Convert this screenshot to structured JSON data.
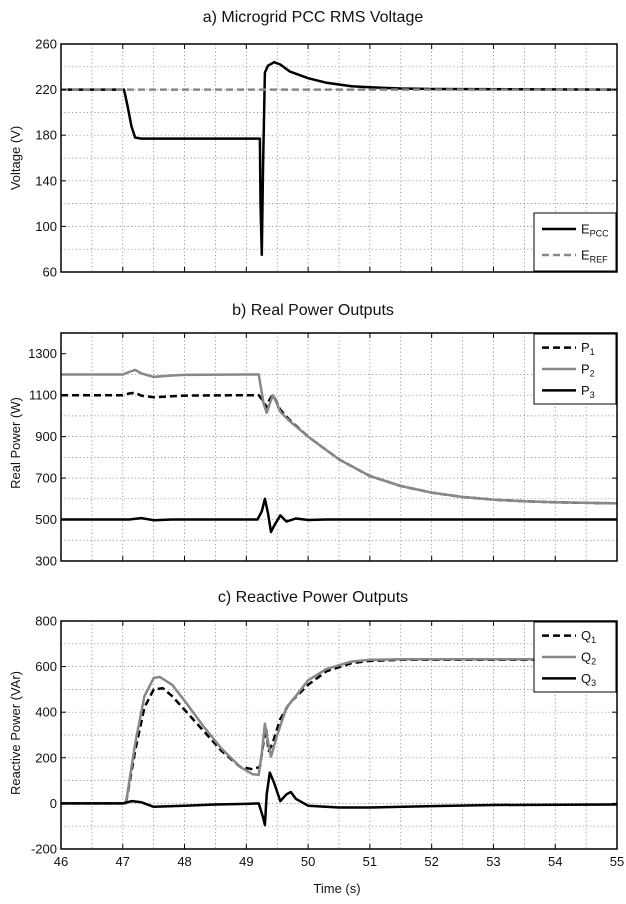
{
  "chart_data": [
    {
      "type": "line",
      "title": "a) Microgrid PCC RMS Voltage",
      "xlabel": "",
      "ylabel": "Voltage (V)",
      "xlim": [
        46,
        55
      ],
      "ylim": [
        60,
        260
      ],
      "xticks": [
        46,
        47,
        48,
        49,
        50,
        51,
        52,
        53,
        54,
        55
      ],
      "yticks": [
        60,
        100,
        140,
        180,
        220,
        260
      ],
      "show_xticklabels": false,
      "grid": true,
      "legend_position": "bottom-right",
      "series": [
        {
          "name": "E",
          "sub": "PCC",
          "color": "#000000",
          "dash": "solid",
          "points": [
            [
              46,
              220
            ],
            [
              47.02,
              220
            ],
            [
              47.08,
              205
            ],
            [
              47.14,
              188
            ],
            [
              47.2,
              178
            ],
            [
              47.3,
              177
            ],
            [
              48,
              177
            ],
            [
              49,
              177
            ],
            [
              49.22,
              177
            ],
            [
              49.23,
              120
            ],
            [
              49.25,
              75
            ],
            [
              49.27,
              150
            ],
            [
              49.3,
              235
            ],
            [
              49.35,
              241
            ],
            [
              49.45,
              244
            ],
            [
              49.55,
              242
            ],
            [
              49.7,
              236
            ],
            [
              50,
              230
            ],
            [
              50.3,
              226
            ],
            [
              50.7,
              223
            ],
            [
              51,
              222
            ],
            [
              51.5,
              221
            ],
            [
              52,
              220.5
            ],
            [
              55,
              220
            ]
          ]
        },
        {
          "name": "E",
          "sub": "REF",
          "color": "#888888",
          "dash": "dashed",
          "points": [
            [
              46,
              220
            ],
            [
              55,
              220
            ]
          ]
        }
      ]
    },
    {
      "type": "line",
      "title": "b) Real Power Outputs",
      "xlabel": "",
      "ylabel": "Real Power (W)",
      "xlim": [
        46,
        55
      ],
      "ylim": [
        300,
        1400
      ],
      "xticks": [
        46,
        47,
        48,
        49,
        50,
        51,
        52,
        53,
        54,
        55
      ],
      "yticks": [
        300,
        500,
        700,
        900,
        1100,
        1300
      ],
      "show_xticklabels": false,
      "grid": true,
      "legend_position": "top-right",
      "series": [
        {
          "name": "P",
          "sub": "1",
          "color": "#000000",
          "dash": "dashed",
          "points": [
            [
              46,
              1100
            ],
            [
              47,
              1100
            ],
            [
              47.1,
              1108
            ],
            [
              47.2,
              1112
            ],
            [
              47.3,
              1098
            ],
            [
              47.5,
              1090
            ],
            [
              47.8,
              1095
            ],
            [
              48,
              1098
            ],
            [
              49,
              1100
            ],
            [
              49.2,
              1100
            ],
            [
              49.28,
              1070
            ],
            [
              49.33,
              1040
            ],
            [
              49.37,
              1075
            ],
            [
              49.42,
              1100
            ],
            [
              49.46,
              1085
            ],
            [
              49.55,
              1030
            ],
            [
              49.7,
              980
            ],
            [
              50,
              900
            ],
            [
              50.5,
              790
            ],
            [
              51,
              710
            ],
            [
              51.5,
              662
            ],
            [
              52,
              630
            ],
            [
              52.5,
              609
            ],
            [
              53,
              596
            ],
            [
              53.5,
              588
            ],
            [
              54,
              583
            ],
            [
              55,
              578
            ]
          ]
        },
        {
          "name": "P",
          "sub": "2",
          "color": "#888888",
          "dash": "solid",
          "points": [
            [
              46,
              1200
            ],
            [
              47,
              1200
            ],
            [
              47.1,
              1212
            ],
            [
              47.2,
              1222
            ],
            [
              47.3,
              1205
            ],
            [
              47.5,
              1188
            ],
            [
              47.8,
              1195
            ],
            [
              48,
              1198
            ],
            [
              49,
              1200
            ],
            [
              49.2,
              1200
            ],
            [
              49.28,
              1060
            ],
            [
              49.33,
              1015
            ],
            [
              49.38,
              1060
            ],
            [
              49.43,
              1100
            ],
            [
              49.48,
              1070
            ],
            [
              49.55,
              1020
            ],
            [
              49.7,
              975
            ],
            [
              50,
              900
            ],
            [
              50.5,
              790
            ],
            [
              51,
              710
            ],
            [
              51.5,
              662
            ],
            [
              52,
              630
            ],
            [
              52.5,
              609
            ],
            [
              53,
              596
            ],
            [
              53.5,
              588
            ],
            [
              54,
              583
            ],
            [
              55,
              578
            ]
          ]
        },
        {
          "name": "P",
          "sub": "3",
          "color": "#000000",
          "dash": "solid",
          "points": [
            [
              46,
              500
            ],
            [
              47.1,
              500
            ],
            [
              47.3,
              507
            ],
            [
              47.5,
              497
            ],
            [
              47.8,
              500
            ],
            [
              49.18,
              500
            ],
            [
              49.25,
              540
            ],
            [
              49.3,
              600
            ],
            [
              49.35,
              530
            ],
            [
              49.4,
              440
            ],
            [
              49.45,
              470
            ],
            [
              49.55,
              520
            ],
            [
              49.65,
              490
            ],
            [
              49.8,
              505
            ],
            [
              50,
              498
            ],
            [
              50.3,
              500
            ],
            [
              55,
              500
            ]
          ]
        }
      ]
    },
    {
      "type": "line",
      "title": "c) Reactive Power Outputs",
      "xlabel": "Time (s)",
      "ylabel": "Reactive Power (VAr)",
      "xlim": [
        46,
        55
      ],
      "ylim": [
        -200,
        800
      ],
      "xticks": [
        46,
        47,
        48,
        49,
        50,
        51,
        52,
        53,
        54,
        55
      ],
      "yticks": [
        -200,
        0,
        200,
        400,
        600,
        800
      ],
      "show_xticklabels": true,
      "grid": true,
      "legend_position": "top-right",
      "series": [
        {
          "name": "Q",
          "sub": "1",
          "color": "#000000",
          "dash": "dashed",
          "points": [
            [
              46,
              0
            ],
            [
              47.05,
              0
            ],
            [
              47.2,
              230
            ],
            [
              47.35,
              420
            ],
            [
              47.5,
              500
            ],
            [
              47.65,
              505
            ],
            [
              47.8,
              470
            ],
            [
              48,
              410
            ],
            [
              48.3,
              320
            ],
            [
              48.6,
              230
            ],
            [
              48.9,
              160
            ],
            [
              49.1,
              150
            ],
            [
              49.22,
              160
            ],
            [
              49.28,
              270
            ],
            [
              49.32,
              330
            ],
            [
              49.36,
              230
            ],
            [
              49.42,
              260
            ],
            [
              49.55,
              370
            ],
            [
              49.7,
              440
            ],
            [
              50,
              520
            ],
            [
              50.3,
              580
            ],
            [
              50.7,
              615
            ],
            [
              51,
              625
            ],
            [
              51.5,
              630
            ],
            [
              55,
              630
            ]
          ]
        },
        {
          "name": "Q",
          "sub": "2",
          "color": "#888888",
          "dash": "solid",
          "points": [
            [
              46,
              0
            ],
            [
              47.05,
              0
            ],
            [
              47.2,
              260
            ],
            [
              47.35,
              470
            ],
            [
              47.5,
              550
            ],
            [
              47.6,
              555
            ],
            [
              47.8,
              520
            ],
            [
              48,
              450
            ],
            [
              48.3,
              340
            ],
            [
              48.6,
              240
            ],
            [
              48.9,
              160
            ],
            [
              49.1,
              128
            ],
            [
              49.2,
              125
            ],
            [
              49.25,
              220
            ],
            [
              49.3,
              350
            ],
            [
              49.35,
              270
            ],
            [
              49.4,
              205
            ],
            [
              49.5,
              300
            ],
            [
              49.65,
              420
            ],
            [
              49.8,
              470
            ],
            [
              50,
              540
            ],
            [
              50.3,
              590
            ],
            [
              50.7,
              622
            ],
            [
              51,
              630
            ],
            [
              51.5,
              632
            ],
            [
              55,
              632
            ]
          ]
        },
        {
          "name": "Q",
          "sub": "3",
          "color": "#000000",
          "dash": "solid",
          "points": [
            [
              46,
              0
            ],
            [
              47,
              0
            ],
            [
              47.15,
              10
            ],
            [
              47.3,
              5
            ],
            [
              47.5,
              -15
            ],
            [
              48,
              -10
            ],
            [
              48.5,
              -5
            ],
            [
              49,
              -2
            ],
            [
              49.2,
              0
            ],
            [
              49.27,
              -60
            ],
            [
              49.3,
              -95
            ],
            [
              49.33,
              40
            ],
            [
              49.38,
              135
            ],
            [
              49.45,
              90
            ],
            [
              49.55,
              10
            ],
            [
              49.65,
              40
            ],
            [
              49.72,
              50
            ],
            [
              49.8,
              20
            ],
            [
              50,
              -10
            ],
            [
              50.5,
              -18
            ],
            [
              51,
              -18
            ],
            [
              52,
              -12
            ],
            [
              53,
              -7
            ],
            [
              55,
              -5
            ]
          ]
        }
      ]
    }
  ]
}
